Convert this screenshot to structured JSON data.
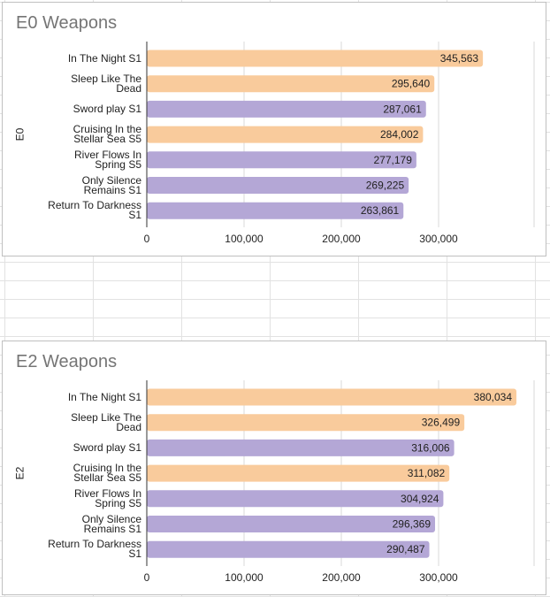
{
  "colors": {
    "peach": "#f9cb9c",
    "purple": "#b4a7d6",
    "grid": "#d9d9d9",
    "axis": "#333333"
  },
  "chart_data": [
    {
      "type": "bar",
      "orientation": "horizontal",
      "title": "E0 Weapons",
      "ylabel": "E0",
      "xlabel": "",
      "xlim": [
        0,
        400000
      ],
      "ticks": [
        0,
        100000,
        200000,
        300000
      ],
      "tick_labels": [
        "0",
        "100,000",
        "200,000",
        "300,000"
      ],
      "categories": [
        [
          "In The Night S1"
        ],
        [
          "Sleep Like The",
          "Dead"
        ],
        [
          "Sword play S1"
        ],
        [
          "Cruising In the",
          "Stellar Sea S5"
        ],
        [
          "River Flows In",
          "Spring S5"
        ],
        [
          "Only Silence",
          "Remains S1"
        ],
        [
          "Return To Darkness",
          "S1"
        ]
      ],
      "values": [
        345563,
        295640,
        287061,
        284002,
        277179,
        269225,
        263861
      ],
      "value_labels": [
        "345,563",
        "295,640",
        "287,061",
        "284,002",
        "277,179",
        "269,225",
        "263,861"
      ],
      "bar_colors": [
        "peach",
        "peach",
        "purple",
        "peach",
        "purple",
        "purple",
        "purple"
      ]
    },
    {
      "type": "bar",
      "orientation": "horizontal",
      "title": "E2 Weapons",
      "ylabel": "E2",
      "xlabel": "",
      "xlim": [
        0,
        400000
      ],
      "ticks": [
        0,
        100000,
        200000,
        300000
      ],
      "tick_labels": [
        "0",
        "100,000",
        "200,000",
        "300,000"
      ],
      "categories": [
        [
          "In The Night S1"
        ],
        [
          "Sleep Like The",
          "Dead"
        ],
        [
          "Sword play S1"
        ],
        [
          "Cruising In the",
          "Stellar Sea S5"
        ],
        [
          "River Flows In",
          "Spring S5"
        ],
        [
          "Only Silence",
          "Remains S1"
        ],
        [
          "Return To Darkness",
          "S1"
        ]
      ],
      "values": [
        380034,
        326499,
        316006,
        311082,
        304924,
        296369,
        290487
      ],
      "value_labels": [
        "380,034",
        "326,499",
        "316,006",
        "311,082",
        "304,924",
        "296,369",
        "290,487"
      ],
      "bar_colors": [
        "peach",
        "peach",
        "purple",
        "peach",
        "purple",
        "purple",
        "purple"
      ]
    }
  ]
}
